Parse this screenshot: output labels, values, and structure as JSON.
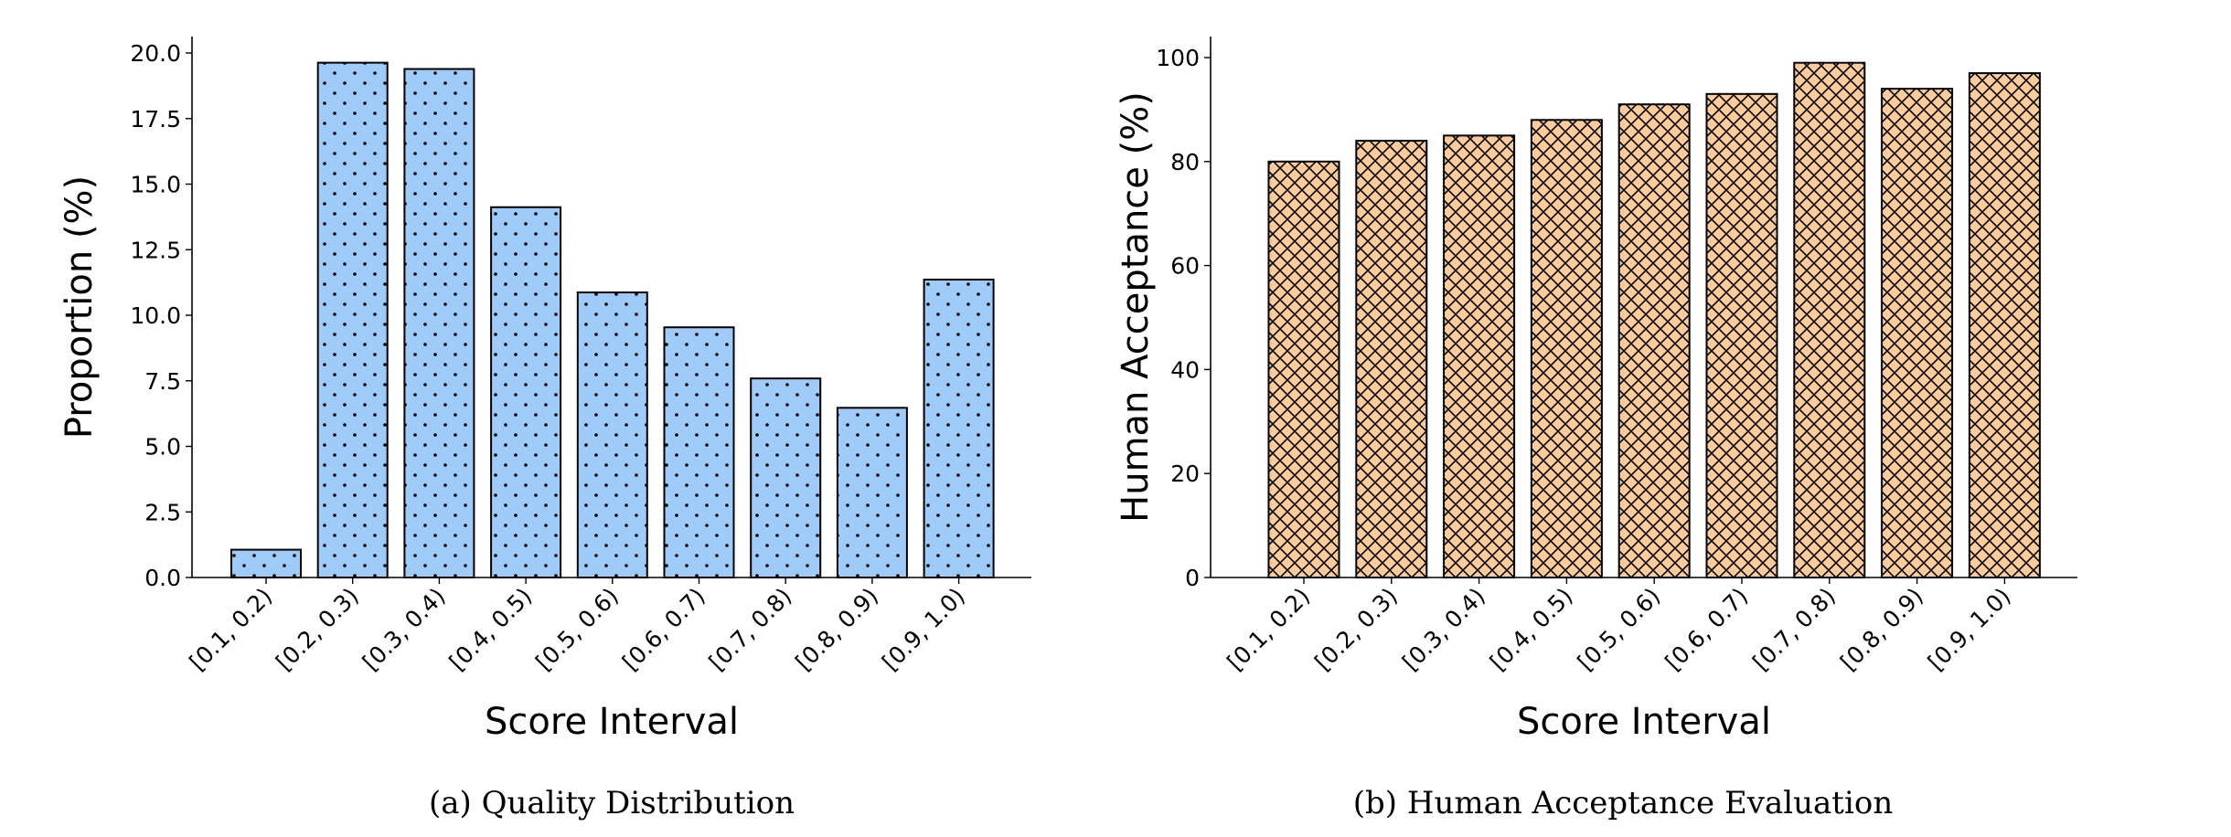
{
  "chart_data": [
    {
      "type": "bar",
      "categories": [
        "[0.1, 0.2)",
        "[0.2, 0.3)",
        "[0.3, 0.4)",
        "[0.4, 0.5)",
        "[0.5, 0.6)",
        "[0.6, 0.7)",
        "[0.7, 0.8)",
        "[0.8, 0.9)",
        "[0.9, 1.0)"
      ],
      "values": [
        1.06,
        19.63,
        19.39,
        14.12,
        10.87,
        9.54,
        7.59,
        6.47,
        11.36
      ],
      "xlabel": "Score Interval",
      "ylabel": "Proportion (%)",
      "ylim": [
        0,
        20.6
      ],
      "yticks": [
        "0.0",
        "2.5",
        "5.0",
        "7.5",
        "10.0",
        "12.5",
        "15.0",
        "17.5",
        "20.0"
      ],
      "caption": "(a) Quality Distribution",
      "color": "#9fcbf8",
      "hatch": "dots",
      "grid": false
    },
    {
      "type": "bar",
      "categories": [
        "[0.1, 0.2)",
        "[0.2, 0.3)",
        "[0.3, 0.4)",
        "[0.4, 0.5)",
        "[0.5, 0.6)",
        "[0.6, 0.7)",
        "[0.7, 0.8)",
        "[0.8, 0.9)",
        "[0.9, 1.0)"
      ],
      "values": [
        80,
        84,
        85,
        88,
        91,
        93,
        99,
        94,
        97
      ],
      "xlabel": "Score Interval",
      "ylabel": "Human Acceptance (%)",
      "ylim": [
        0,
        104
      ],
      "yticks": [
        "0",
        "20",
        "40",
        "60",
        "80",
        "100"
      ],
      "caption": "(b) Human Acceptance Evaluation",
      "color": "#fdcb9b",
      "hatch": "crosshatch",
      "grid": false
    }
  ]
}
